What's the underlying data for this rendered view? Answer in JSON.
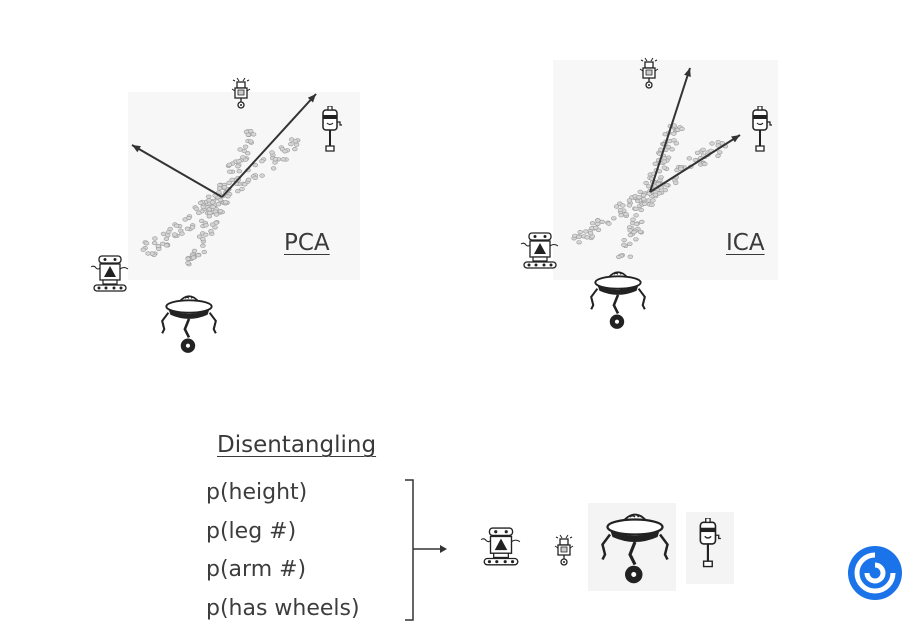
{
  "labels": {
    "pca": "PCA",
    "ica": "ICA",
    "disentangling": "Disentangling"
  },
  "factors": [
    "p(height)",
    "p(leg #)",
    "p(arm #)",
    "p(has wheels)"
  ],
  "icons": {
    "robots": [
      "tall-antenna-robot-icon",
      "wheeled-tread-robot-icon",
      "flying-saucer-robot-icon",
      "one-leg-robot-icon"
    ],
    "logo": "deepmind-logo"
  },
  "colors": {
    "text": "#3a3a3a",
    "points": "#9a9a9a",
    "arrow": "#333333",
    "logo": "#1a73e8"
  }
}
